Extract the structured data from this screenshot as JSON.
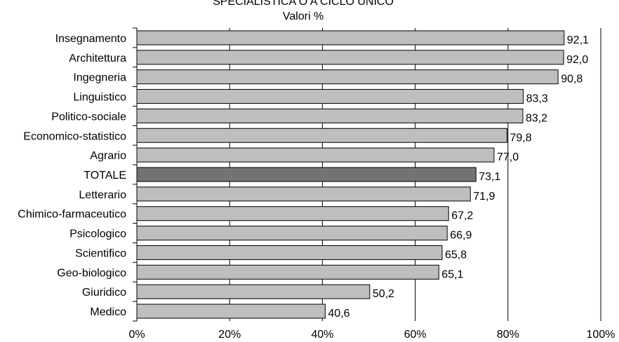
{
  "chart_data": {
    "type": "bar",
    "orientation": "horizontal",
    "title": "SPECIALISTICA O A CICLO UNICO",
    "subtitle": "Valori %",
    "categories": [
      "Insegnamento",
      "Architettura",
      "Ingegneria",
      "Linguistico",
      "Politico-sociale",
      "Economico-statistico",
      "Agrario",
      "TOTALE",
      "Letterario",
      "Chimico-farmaceutico",
      "Psicologico",
      "Scientifico",
      "Geo-biologico",
      "Giuridico",
      "Medico"
    ],
    "values": [
      92.1,
      92.0,
      90.8,
      83.3,
      83.2,
      79.8,
      77.0,
      73.1,
      71.9,
      67.2,
      66.9,
      65.8,
      65.1,
      50.2,
      40.6
    ],
    "value_labels": [
      "92,1",
      "92,0",
      "90,8",
      "83,3",
      "83,2",
      "79,8",
      "77,0",
      "73,1",
      "71,9",
      "67,2",
      "66,9",
      "65,8",
      "65,1",
      "50,2",
      "40,6"
    ],
    "highlight_category": "TOTALE",
    "xlim": [
      0,
      100
    ],
    "x_ticks": [
      0,
      20,
      40,
      60,
      80,
      100
    ],
    "x_tick_labels": [
      "0%",
      "20%",
      "40%",
      "60%",
      "80%",
      "100%"
    ],
    "grid": "vertical",
    "colors": {
      "bar": "#bebebe",
      "highlight": "#737373"
    }
  }
}
